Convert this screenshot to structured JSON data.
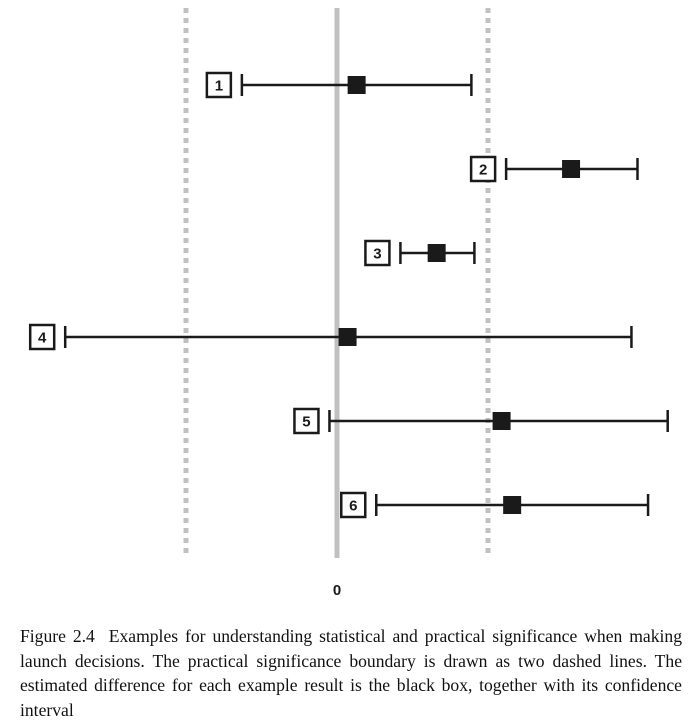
{
  "chart_data": {
    "type": "interval",
    "zero_label": "0",
    "boundaries": [
      -1,
      1
    ],
    "colors": {
      "zero_line": "#c0c0c0",
      "boundary": "#c0c0c0",
      "marks": "#1a1a1a"
    },
    "grid": false,
    "legend": "none",
    "results": [
      {
        "label": "1",
        "lower": -0.63,
        "estimate": 0.13,
        "upper": 0.89
      },
      {
        "label": "2",
        "lower": 1.12,
        "estimate": 1.55,
        "upper": 1.99
      },
      {
        "label": "3",
        "lower": 0.42,
        "estimate": 0.66,
        "upper": 0.91
      },
      {
        "label": "4",
        "lower": -1.8,
        "estimate": 0.07,
        "upper": 1.95
      },
      {
        "label": "5",
        "lower": -0.05,
        "estimate": 1.09,
        "upper": 2.19
      },
      {
        "label": "6",
        "lower": 0.26,
        "estimate": 1.16,
        "upper": 2.06
      }
    ]
  },
  "caption": {
    "figure_label": "Figure 2.4",
    "text": "Examples for understanding statistical and practical significance when making launch decisions. The practical significance boundary is drawn as two dashed lines. The estimated difference for each example result is the black box, together with its confidence interval"
  }
}
